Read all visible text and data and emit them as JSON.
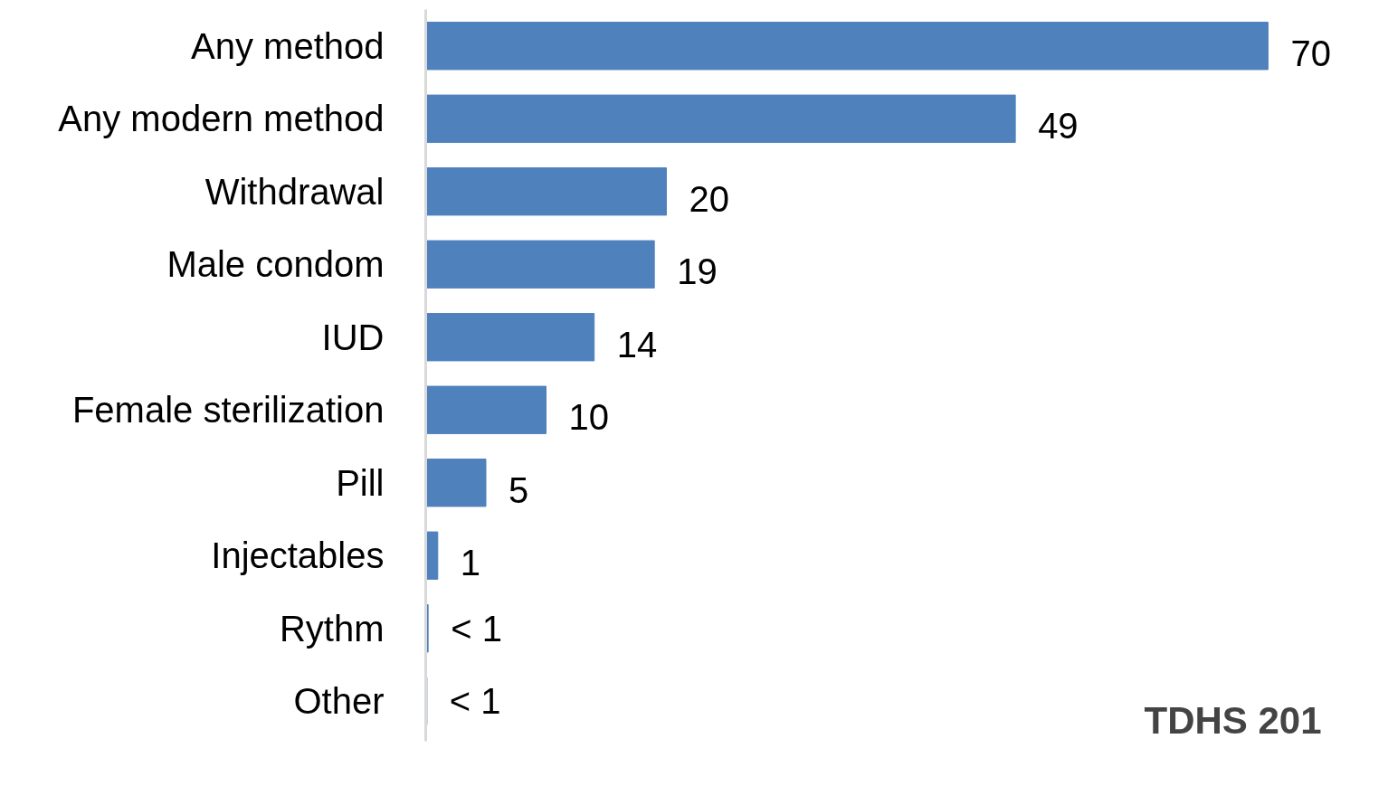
{
  "chart_data": {
    "type": "bar",
    "orientation": "horizontal",
    "categories": [
      "Any method",
      "Any modern method",
      "Withdrawal",
      "Male condom",
      "IUD",
      "Female sterilization",
      "Pill",
      "Injectables",
      "Rythm",
      "Other"
    ],
    "values": [
      70,
      49,
      20,
      19,
      14,
      10,
      5,
      1,
      0.2,
      0.1
    ],
    "value_labels": [
      "70",
      "49",
      "20",
      "19",
      "14",
      "10",
      "5",
      "1",
      "< 1",
      "< 1"
    ],
    "color": "#4f81bd",
    "tick_labels": "y",
    "grid": false,
    "annotations": [
      "TDHS 201"
    ]
  }
}
